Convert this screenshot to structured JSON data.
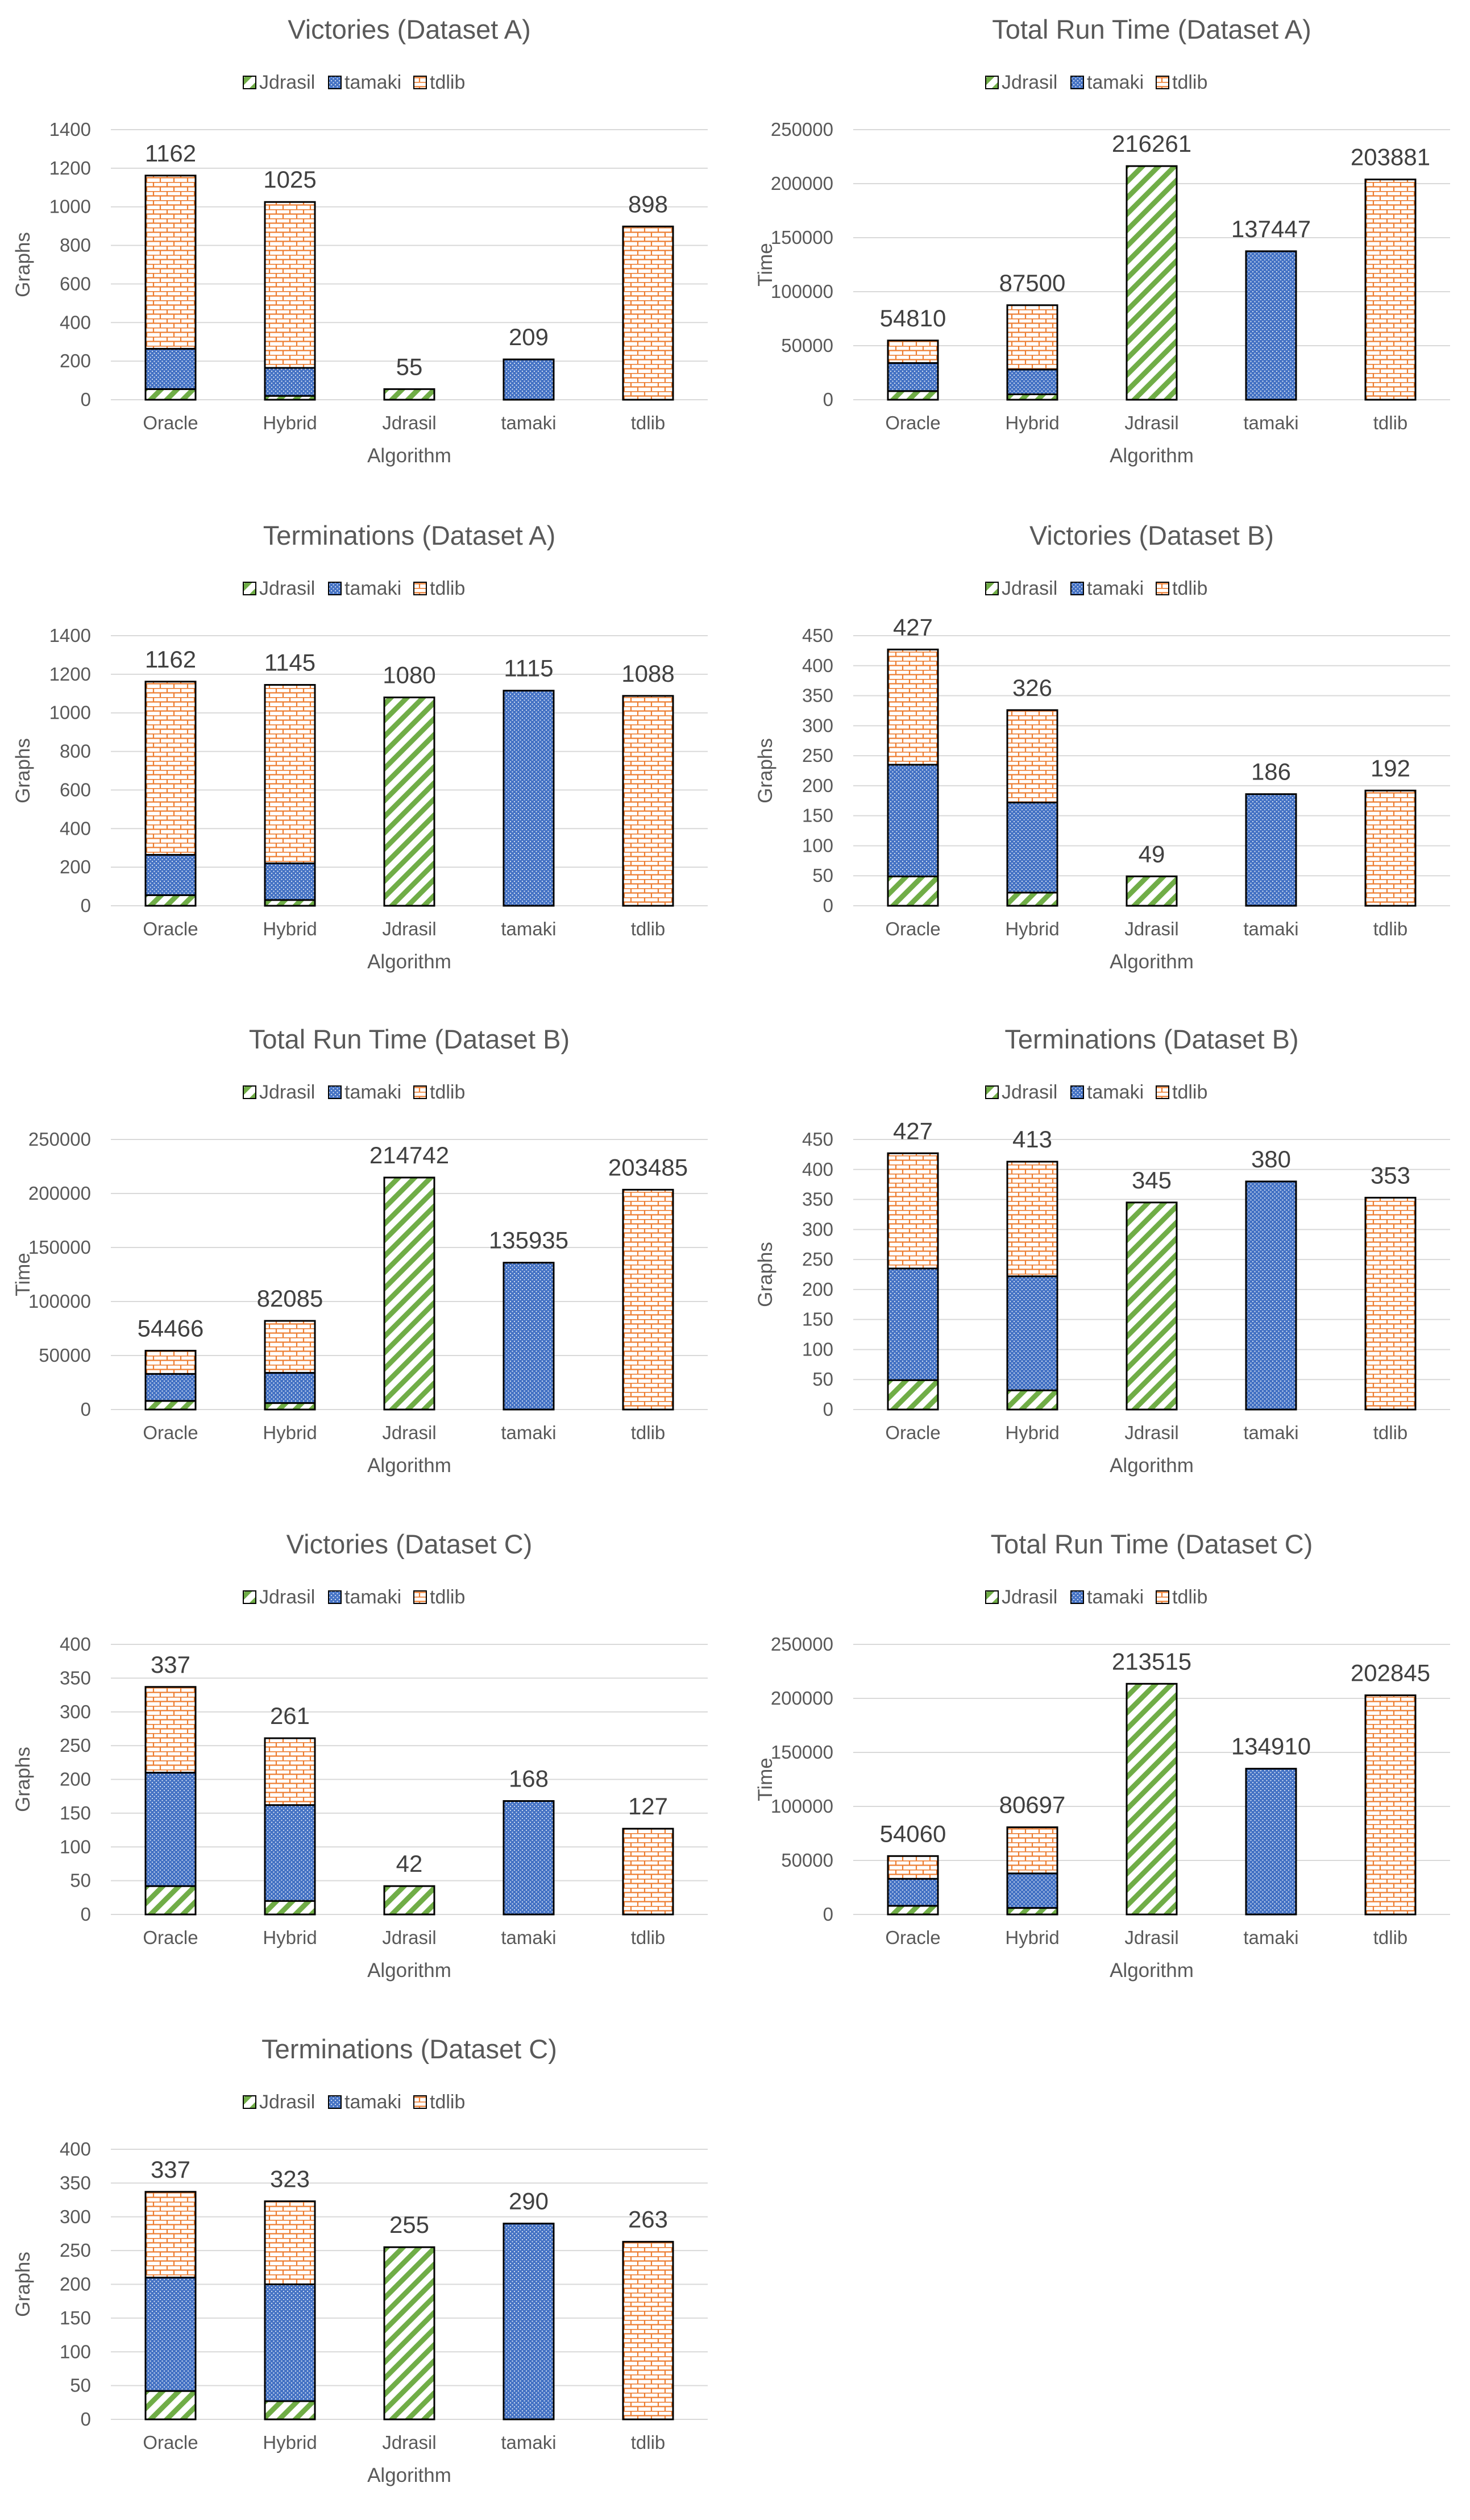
{
  "legend": {
    "series": [
      "Jdrasil",
      "tamaki",
      "tdlib"
    ]
  },
  "colors": {
    "Jdrasil": "#70ad47",
    "tamaki": "#4472c4",
    "tdlib": "#ed7d31"
  },
  "chart_data": [
    {
      "type": "bar",
      "stacked": true,
      "title": "Victories (Dataset A)",
      "xlabel": "Algorithm",
      "ylabel": "Graphs",
      "categories": [
        "Oracle",
        "Hybrid",
        "Jdrasil",
        "tamaki",
        "tdlib"
      ],
      "ylim": [
        0,
        1400
      ],
      "yticks": [
        0,
        200,
        400,
        600,
        800,
        1000,
        1200,
        1400
      ],
      "series": [
        {
          "name": "Jdrasil",
          "values": [
            55,
            20,
            55,
            0,
            0
          ]
        },
        {
          "name": "tamaki",
          "values": [
            209,
            145,
            0,
            209,
            0
          ]
        },
        {
          "name": "tdlib",
          "values": [
            898,
            860,
            0,
            0,
            898
          ]
        }
      ],
      "totals": [
        1162,
        1025,
        55,
        209,
        898
      ]
    },
    {
      "type": "bar",
      "stacked": true,
      "title": "Total Run Time (Dataset A)",
      "xlabel": "Algorithm",
      "ylabel": "Time",
      "categories": [
        "Oracle",
        "Hybrid",
        "Jdrasil",
        "tamaki",
        "tdlib"
      ],
      "ylim": [
        0,
        250000
      ],
      "yticks": [
        0,
        50000,
        100000,
        150000,
        200000,
        250000
      ],
      "series": [
        {
          "name": "Jdrasil",
          "values": [
            8000,
            5000,
            216261,
            0,
            0
          ]
        },
        {
          "name": "tamaki",
          "values": [
            26000,
            23000,
            0,
            137447,
            0
          ]
        },
        {
          "name": "tdlib",
          "values": [
            20810,
            59500,
            0,
            0,
            203881
          ]
        }
      ],
      "totals": [
        54810,
        87500,
        216261,
        137447,
        203881
      ]
    },
    {
      "type": "bar",
      "stacked": true,
      "title": "Terminations (Dataset A)",
      "xlabel": "Algorithm",
      "ylabel": "Graphs",
      "categories": [
        "Oracle",
        "Hybrid",
        "Jdrasil",
        "tamaki",
        "tdlib"
      ],
      "ylim": [
        0,
        1400
      ],
      "yticks": [
        0,
        200,
        400,
        600,
        800,
        1000,
        1200,
        1400
      ],
      "series": [
        {
          "name": "Jdrasil",
          "values": [
            55,
            30,
            1080,
            0,
            0
          ]
        },
        {
          "name": "tamaki",
          "values": [
            209,
            190,
            0,
            1115,
            0
          ]
        },
        {
          "name": "tdlib",
          "values": [
            898,
            925,
            0,
            0,
            1088
          ]
        }
      ],
      "totals": [
        1162,
        1145,
        1080,
        1115,
        1088
      ]
    },
    {
      "type": "bar",
      "stacked": true,
      "title": "Victories (Dataset B)",
      "xlabel": "Algorithm",
      "ylabel": "Graphs",
      "categories": [
        "Oracle",
        "Hybrid",
        "Jdrasil",
        "tamaki",
        "tdlib"
      ],
      "ylim": [
        0,
        450
      ],
      "yticks": [
        0,
        50,
        100,
        150,
        200,
        250,
        300,
        350,
        400,
        450
      ],
      "series": [
        {
          "name": "Jdrasil",
          "values": [
            49,
            22,
            49,
            0,
            0
          ]
        },
        {
          "name": "tamaki",
          "values": [
            186,
            150,
            0,
            186,
            0
          ]
        },
        {
          "name": "tdlib",
          "values": [
            192,
            154,
            0,
            0,
            192
          ]
        }
      ],
      "totals": [
        427,
        326,
        49,
        186,
        192
      ]
    },
    {
      "type": "bar",
      "stacked": true,
      "title": "Total Run Time (Dataset B)",
      "xlabel": "Algorithm",
      "ylabel": "Time",
      "categories": [
        "Oracle",
        "Hybrid",
        "Jdrasil",
        "tamaki",
        "tdlib"
      ],
      "ylim": [
        0,
        250000
      ],
      "yticks": [
        0,
        50000,
        100000,
        150000,
        200000,
        250000
      ],
      "series": [
        {
          "name": "Jdrasil",
          "values": [
            8000,
            6000,
            214742,
            0,
            0
          ]
        },
        {
          "name": "tamaki",
          "values": [
            25000,
            28000,
            0,
            135935,
            0
          ]
        },
        {
          "name": "tdlib",
          "values": [
            21466,
            48085,
            0,
            0,
            203485
          ]
        }
      ],
      "totals": [
        54466,
        82085,
        214742,
        135935,
        203485
      ]
    },
    {
      "type": "bar",
      "stacked": true,
      "title": "Terminations (Dataset B)",
      "xlabel": "Algorithm",
      "ylabel": "Graphs",
      "categories": [
        "Oracle",
        "Hybrid",
        "Jdrasil",
        "tamaki",
        "tdlib"
      ],
      "ylim": [
        0,
        450
      ],
      "yticks": [
        0,
        50,
        100,
        150,
        200,
        250,
        300,
        350,
        400,
        450
      ],
      "series": [
        {
          "name": "Jdrasil",
          "values": [
            49,
            32,
            345,
            0,
            0
          ]
        },
        {
          "name": "tamaki",
          "values": [
            186,
            190,
            0,
            380,
            0
          ]
        },
        {
          "name": "tdlib",
          "values": [
            192,
            191,
            0,
            0,
            353
          ]
        }
      ],
      "totals": [
        427,
        413,
        345,
        380,
        353
      ]
    },
    {
      "type": "bar",
      "stacked": true,
      "title": "Victories (Dataset C)",
      "xlabel": "Algorithm",
      "ylabel": "Graphs",
      "categories": [
        "Oracle",
        "Hybrid",
        "Jdrasil",
        "tamaki",
        "tdlib"
      ],
      "ylim": [
        0,
        400
      ],
      "yticks": [
        0,
        50,
        100,
        150,
        200,
        250,
        300,
        350,
        400
      ],
      "series": [
        {
          "name": "Jdrasil",
          "values": [
            42,
            20,
            42,
            0,
            0
          ]
        },
        {
          "name": "tamaki",
          "values": [
            168,
            142,
            0,
            168,
            0
          ]
        },
        {
          "name": "tdlib",
          "values": [
            127,
            99,
            0,
            0,
            127
          ]
        }
      ],
      "totals": [
        337,
        261,
        42,
        168,
        127
      ]
    },
    {
      "type": "bar",
      "stacked": true,
      "title": "Total Run Time (Dataset C)",
      "xlabel": "Algorithm",
      "ylabel": "Time",
      "categories": [
        "Oracle",
        "Hybrid",
        "Jdrasil",
        "tamaki",
        "tdlib"
      ],
      "ylim": [
        0,
        250000
      ],
      "yticks": [
        0,
        50000,
        100000,
        150000,
        200000,
        250000
      ],
      "series": [
        {
          "name": "Jdrasil",
          "values": [
            8000,
            6000,
            213515,
            0,
            0
          ]
        },
        {
          "name": "tamaki",
          "values": [
            25000,
            32000,
            0,
            134910,
            0
          ]
        },
        {
          "name": "tdlib",
          "values": [
            21060,
            42697,
            0,
            0,
            202845
          ]
        }
      ],
      "totals": [
        54060,
        80697,
        213515,
        134910,
        202845
      ]
    },
    {
      "type": "bar",
      "stacked": true,
      "title": "Terminations (Dataset C)",
      "xlabel": "Algorithm",
      "ylabel": "Graphs",
      "categories": [
        "Oracle",
        "Hybrid",
        "Jdrasil",
        "tamaki",
        "tdlib"
      ],
      "ylim": [
        0,
        400
      ],
      "yticks": [
        0,
        50,
        100,
        150,
        200,
        250,
        300,
        350,
        400
      ],
      "series": [
        {
          "name": "Jdrasil",
          "values": [
            42,
            27,
            255,
            0,
            0
          ]
        },
        {
          "name": "tamaki",
          "values": [
            168,
            173,
            0,
            290,
            0
          ]
        },
        {
          "name": "tdlib",
          "values": [
            127,
            123,
            0,
            0,
            263
          ]
        }
      ],
      "totals": [
        337,
        323,
        255,
        290,
        263
      ]
    }
  ]
}
